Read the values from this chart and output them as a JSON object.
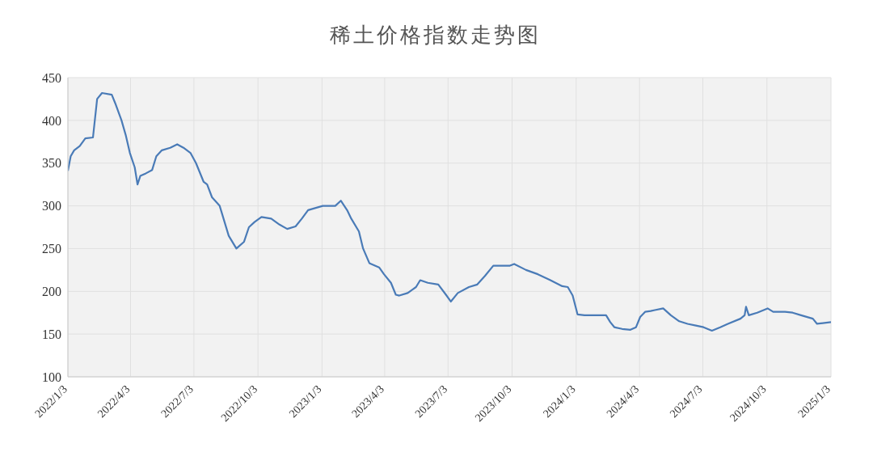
{
  "chart_data": {
    "type": "line",
    "title": "稀土价格指数走势图",
    "x": [
      "2022-01-03",
      "2022-01-07",
      "2022-01-12",
      "2022-01-20",
      "2022-01-28",
      "2022-02-08",
      "2022-02-14",
      "2022-02-21",
      "2022-03-07",
      "2022-03-12",
      "2022-03-21",
      "2022-03-27",
      "2022-04-02",
      "2022-04-09",
      "2022-04-13",
      "2022-04-17",
      "2022-04-25",
      "2022-05-04",
      "2022-05-10",
      "2022-05-18",
      "2022-05-30",
      "2022-06-09",
      "2022-06-18",
      "2022-06-28",
      "2022-07-06",
      "2022-07-17",
      "2022-07-22",
      "2022-07-29",
      "2022-08-09",
      "2022-08-22",
      "2022-09-02",
      "2022-09-13",
      "2022-09-20",
      "2022-09-28",
      "2022-10-08",
      "2022-10-22",
      "2022-11-03",
      "2022-11-14",
      "2022-11-26",
      "2022-12-05",
      "2022-12-14",
      "2023-01-04",
      "2023-01-22",
      "2023-01-30",
      "2023-02-08",
      "2023-02-14",
      "2023-02-25",
      "2023-03-03",
      "2023-03-12",
      "2023-03-26",
      "2023-04-02",
      "2023-04-12",
      "2023-04-19",
      "2023-04-24",
      "2023-05-06",
      "2023-05-18",
      "2023-05-24",
      "2023-06-04",
      "2023-06-19",
      "2023-06-30",
      "2023-07-07",
      "2023-07-17",
      "2023-08-02",
      "2023-08-14",
      "2023-08-25",
      "2023-09-06",
      "2023-09-30",
      "2023-10-06",
      "2023-10-23",
      "2023-11-09",
      "2023-11-27",
      "2023-12-14",
      "2023-12-22",
      "2023-12-29",
      "2024-01-05",
      "2024-01-15",
      "2024-02-15",
      "2024-02-21",
      "2024-02-27",
      "2024-03-09",
      "2024-03-21",
      "2024-03-29",
      "2024-04-04",
      "2024-04-11",
      "2024-04-19",
      "2024-04-25",
      "2024-05-07",
      "2024-05-18",
      "2024-05-30",
      "2024-06-11",
      "2024-06-23",
      "2024-07-04",
      "2024-07-16",
      "2024-07-28",
      "2024-08-08",
      "2024-08-26",
      "2024-09-01",
      "2024-09-03",
      "2024-09-07",
      "2024-09-19",
      "2024-10-04",
      "2024-10-12",
      "2024-10-29",
      "2024-11-09",
      "2024-11-21",
      "2024-12-08",
      "2024-12-14",
      "2025-01-03"
    ],
    "series": [
      {
        "color": "#4a7bb7",
        "values": [
          341,
          358,
          365,
          370,
          379,
          380,
          425,
          432,
          430,
          420,
          400,
          383,
          362,
          345,
          325,
          335,
          338,
          342,
          358,
          365,
          368,
          372,
          368,
          362,
          350,
          328,
          325,
          310,
          300,
          265,
          250,
          258,
          275,
          281,
          287,
          285,
          278,
          273,
          276,
          285,
          295,
          300,
          300,
          306,
          295,
          285,
          270,
          250,
          233,
          228,
          220,
          210,
          196,
          195,
          198,
          205,
          213,
          210,
          208,
          196,
          188,
          198,
          205,
          208,
          218,
          230,
          230,
          232,
          225,
          220,
          213,
          206,
          205,
          195,
          173,
          172,
          172,
          164,
          158,
          156,
          155,
          158,
          170,
          176,
          177,
          178,
          180,
          172,
          165,
          162,
          160,
          158,
          154,
          158,
          162,
          168,
          172,
          182,
          172,
          175,
          180,
          176,
          176,
          175,
          172,
          168,
          162,
          164
        ]
      }
    ],
    "xlim": [
      "2022-01-03",
      "2025-01-03"
    ],
    "xticks": [
      {
        "value": "2022-01-03",
        "label": "2022/1/3"
      },
      {
        "value": "2022-04-03",
        "label": "2022/4/3"
      },
      {
        "value": "2022-07-03",
        "label": "2022/7/3"
      },
      {
        "value": "2022-10-03",
        "label": "2022/10/3"
      },
      {
        "value": "2023-01-03",
        "label": "2023/1/3"
      },
      {
        "value": "2023-04-03",
        "label": "2023/4/3"
      },
      {
        "value": "2023-07-03",
        "label": "2023/7/3"
      },
      {
        "value": "2023-10-03",
        "label": "2023/10/3"
      },
      {
        "value": "2024-01-03",
        "label": "2024/1/3"
      },
      {
        "value": "2024-04-03",
        "label": "2024/4/3"
      },
      {
        "value": "2024-07-03",
        "label": "2024/7/3"
      },
      {
        "value": "2024-10-03",
        "label": "2024/10/3"
      },
      {
        "value": "2025-01-03",
        "label": "2025/1/3"
      }
    ],
    "ylim": [
      100,
      450
    ],
    "yticks": [
      100,
      150,
      200,
      250,
      300,
      350,
      400,
      450
    ],
    "grid": true,
    "legend": false,
    "marker": "none",
    "line_style": "solid"
  }
}
